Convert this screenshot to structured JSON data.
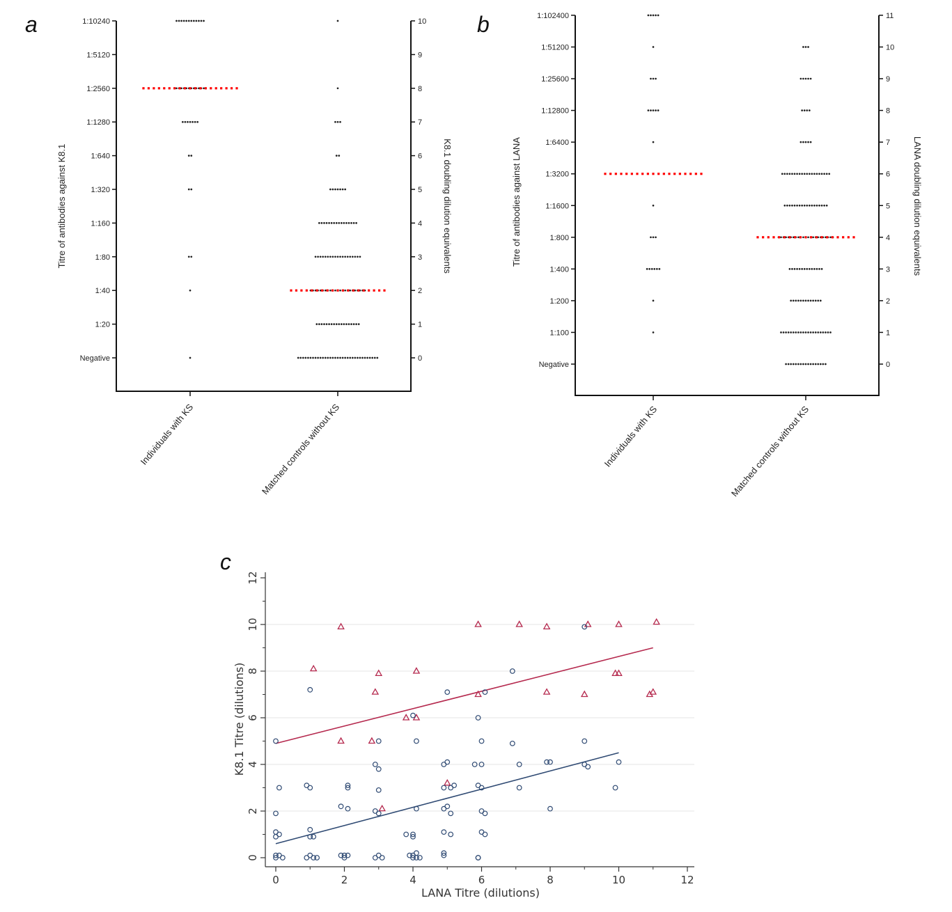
{
  "panels": {
    "a": {
      "letter": "a"
    },
    "b": {
      "letter": "b"
    },
    "c": {
      "letter": "c"
    }
  },
  "chart_data": [
    {
      "type": "scatter",
      "subtype": "dot-strip",
      "ylabel_left": "Titre of antibodies against  K8.1",
      "ylabel_right": "K8.1 doubling dilution equivalents",
      "y_tick_labels": [
        "Negative",
        "1:20",
        "1:40",
        "1:80",
        "1:160",
        "1:320",
        "1:640",
        "1:1280",
        "1:2560",
        "1:5120",
        "1:10240"
      ],
      "y_right_ticks": [
        "0",
        "1",
        "2",
        "3",
        "4",
        "5",
        "6",
        "7",
        "8",
        "9",
        "10"
      ],
      "ylim": [
        -0.5,
        10.5
      ],
      "categories": [
        "Individuals with KS",
        "Matched controls without KS"
      ],
      "counts": [
        [
          1,
          0,
          1,
          2,
          0,
          2,
          2,
          7,
          12,
          0,
          12
        ],
        [
          33,
          18,
          23,
          19,
          16,
          7,
          2,
          3,
          1,
          0,
          1
        ]
      ],
      "medians": [
        8,
        2
      ],
      "median_color": "#ff0000"
    },
    {
      "type": "scatter",
      "subtype": "dot-strip",
      "ylabel_left": "Titre of antibodies against LANA",
      "ylabel_right": "LANA doubling dilution equivalents",
      "y_tick_labels": [
        "Negative",
        "1:100",
        "1:200",
        "1:400",
        "1:800",
        "1:1600",
        "1:3200",
        "1:6400",
        "1:12800",
        "1:25600",
        "1:51200",
        "1:102400"
      ],
      "y_right_ticks": [
        "0",
        "1",
        "2",
        "3",
        "4",
        "5",
        "6",
        "7",
        "8",
        "9",
        "10",
        "11"
      ],
      "ylim": [
        -0.5,
        11.5
      ],
      "categories": [
        "Individuals with KS",
        "Matched controls without KS"
      ],
      "counts": [
        [
          0,
          1,
          1,
          6,
          3,
          1,
          1,
          1,
          5,
          3,
          1,
          5
        ],
        [
          17,
          21,
          13,
          14,
          23,
          18,
          20,
          5,
          4,
          5,
          3,
          0
        ]
      ],
      "medians": [
        6,
        4
      ],
      "median_color": "#ff0000"
    },
    {
      "type": "scatter",
      "xlabel": "LANA Titre (dilutions)",
      "ylabel": "K8.1 Titre (dilutions)",
      "xlim": [
        0,
        12
      ],
      "ylim": [
        0,
        12
      ],
      "x_ticks": [
        0,
        2,
        4,
        6,
        8,
        10,
        12
      ],
      "y_ticks": [
        0,
        2,
        4,
        6,
        8,
        10,
        12
      ],
      "grid": true,
      "series": [
        {
          "marker": "triangle",
          "color": "#b5294e",
          "points": [
            [
              1.9,
              9.9
            ],
            [
              5.9,
              10
            ],
            [
              7.1,
              10
            ],
            [
              7.9,
              9.9
            ],
            [
              9.1,
              10
            ],
            [
              10,
              10
            ],
            [
              11.1,
              10.1
            ],
            [
              1.1,
              8.1
            ],
            [
              3,
              7.9
            ],
            [
              4.1,
              8
            ],
            [
              10,
              7.9
            ],
            [
              9.9,
              7.9
            ],
            [
              2.9,
              7.1
            ],
            [
              5.9,
              7
            ],
            [
              7.9,
              7.1
            ],
            [
              9,
              7
            ],
            [
              11,
              7.1
            ],
            [
              10.9,
              7
            ],
            [
              3.8,
              6
            ],
            [
              4.1,
              6
            ],
            [
              1.9,
              5
            ],
            [
              2.8,
              5
            ],
            [
              5,
              3.2
            ],
            [
              3.1,
              2.1
            ]
          ],
          "fit": {
            "x": [
              0,
              11
            ],
            "y": [
              4.9,
              9.0
            ]
          }
        },
        {
          "marker": "circle",
          "color": "#2f4a73",
          "points": [
            [
              9,
              9.9
            ],
            [
              6.9,
              8
            ],
            [
              1,
              7.2
            ],
            [
              5,
              7.1
            ],
            [
              6.1,
              7.1
            ],
            [
              4,
              6.1
            ],
            [
              5.9,
              6
            ],
            [
              0,
              5
            ],
            [
              3,
              5
            ],
            [
              4.1,
              5
            ],
            [
              6,
              5
            ],
            [
              6.9,
              4.9
            ],
            [
              9,
              5
            ],
            [
              2.9,
              4
            ],
            [
              3,
              3.8
            ],
            [
              4.9,
              4
            ],
            [
              5,
              4.1
            ],
            [
              5.8,
              4
            ],
            [
              6,
              4
            ],
            [
              7.1,
              4
            ],
            [
              7.9,
              4.1
            ],
            [
              8,
              4.1
            ],
            [
              9,
              4
            ],
            [
              9.1,
              3.9
            ],
            [
              10,
              4.1
            ],
            [
              0.1,
              3
            ],
            [
              0.9,
              3.1
            ],
            [
              1,
              3
            ],
            [
              2.1,
              3
            ],
            [
              2.1,
              3.1
            ],
            [
              3,
              2.9
            ],
            [
              4.9,
              3
            ],
            [
              5.1,
              3
            ],
            [
              5.2,
              3.1
            ],
            [
              5.9,
              3.1
            ],
            [
              6,
              3
            ],
            [
              7.1,
              3
            ],
            [
              9.9,
              3
            ],
            [
              0,
              1.9
            ],
            [
              1.9,
              2.2
            ],
            [
              2.1,
              2.1
            ],
            [
              2.9,
              2
            ],
            [
              3,
              1.9
            ],
            [
              4.1,
              2.1
            ],
            [
              4.9,
              2.1
            ],
            [
              5,
              2.2
            ],
            [
              5.1,
              1.9
            ],
            [
              6,
              2
            ],
            [
              6.1,
              1.9
            ],
            [
              8,
              2.1
            ],
            [
              0,
              1.1
            ],
            [
              0.1,
              1
            ],
            [
              0,
              0.9
            ],
            [
              1,
              1.2
            ],
            [
              1,
              0.9
            ],
            [
              1.1,
              0.9
            ],
            [
              3.8,
              1
            ],
            [
              4,
              1
            ],
            [
              4,
              0.9
            ],
            [
              4.9,
              1.1
            ],
            [
              5.1,
              1
            ],
            [
              6,
              1.1
            ],
            [
              6.1,
              1
            ],
            [
              0,
              0.1
            ],
            [
              0.1,
              0.1
            ],
            [
              0.2,
              0
            ],
            [
              0,
              0
            ],
            [
              0.9,
              0
            ],
            [
              1,
              0.1
            ],
            [
              1.1,
              0
            ],
            [
              1.2,
              0
            ],
            [
              1.9,
              0.1
            ],
            [
              2,
              0.1
            ],
            [
              2,
              0
            ],
            [
              2.1,
              0.1
            ],
            [
              2.9,
              0
            ],
            [
              3,
              0.1
            ],
            [
              3.1,
              0
            ],
            [
              3.9,
              0.1
            ],
            [
              4,
              0
            ],
            [
              4,
              0.1
            ],
            [
              4.1,
              0
            ],
            [
              4.1,
              0.2
            ],
            [
              4.2,
              0
            ],
            [
              4.9,
              0.1
            ],
            [
              4.9,
              0.2
            ],
            [
              5.9,
              0
            ],
            [
              5.9,
              0
            ]
          ],
          "fit": {
            "x": [
              0,
              10
            ],
            "y": [
              0.6,
              4.5
            ]
          }
        }
      ]
    }
  ]
}
